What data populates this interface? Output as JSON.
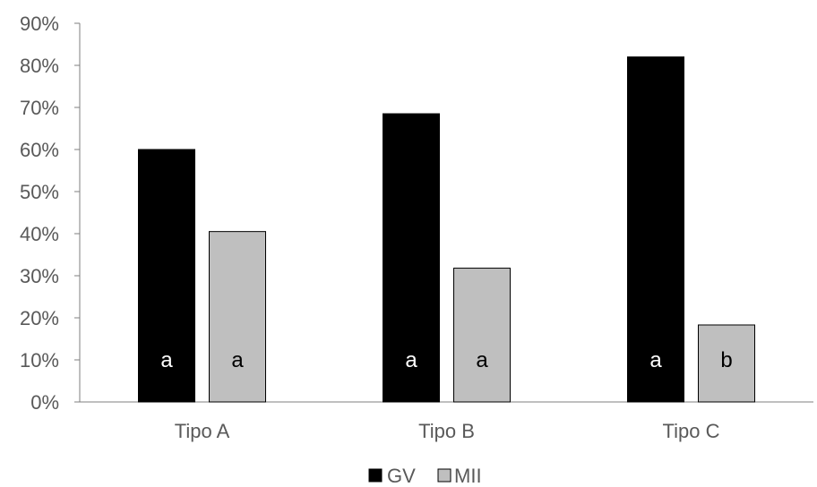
{
  "chart_data": {
    "type": "bar",
    "categories": [
      "Tipo A",
      "Tipo B",
      "Tipo C"
    ],
    "series": [
      {
        "name": "GV",
        "values": [
          60,
          68.5,
          82
        ],
        "color": "#000000",
        "labels": [
          "a",
          "a",
          "a"
        ]
      },
      {
        "name": "MII",
        "values": [
          40.5,
          31.8,
          18.3
        ],
        "color": "#bfbfbf",
        "labels": [
          "a",
          "a",
          "b"
        ]
      }
    ],
    "y_ticks": [
      "0%",
      "10%",
      "20%",
      "30%",
      "40%",
      "50%",
      "60%",
      "70%",
      "80%",
      "90%"
    ],
    "ylim": [
      0,
      90
    ],
    "grid": false,
    "legend": "bottom-center"
  }
}
